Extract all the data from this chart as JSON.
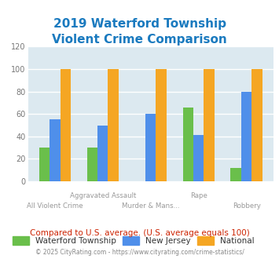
{
  "title": "2019 Waterford Township\nViolent Crime Comparison",
  "categories": [
    "All Violent Crime",
    "Aggravated Assault",
    "Murder & Mans...",
    "Rape",
    "Robbery"
  ],
  "series": {
    "Waterford Township": [
      30,
      30,
      0,
      66,
      12
    ],
    "New Jersey": [
      55,
      50,
      60,
      41,
      80
    ],
    "National": [
      100,
      100,
      100,
      100,
      100
    ]
  },
  "colors": {
    "Waterford Township": "#6abf4b",
    "New Jersey": "#4f8fea",
    "National": "#f5a623"
  },
  "ylim": [
    0,
    120
  ],
  "yticks": [
    0,
    20,
    40,
    60,
    80,
    100,
    120
  ],
  "title_color": "#1a7abf",
  "title_fontsize": 11,
  "plot_bg_color": "#dce9f0",
  "footer_text": "Compared to U.S. average. (U.S. average equals 100)",
  "footer_color": "#cc2200",
  "copyright_text": "© 2025 CityRating.com - https://www.cityrating.com/crime-statistics/",
  "copyright_color": "#888888",
  "grid_color": "#ffffff",
  "tick_label_color": "#777777",
  "legend_label_color": "#333333",
  "bar_width": 0.22,
  "upper_labels": {
    "1": "Aggravated Assault",
    "3": "Rape"
  },
  "lower_labels": {
    "0": "All Violent Crime",
    "2": "Murder & Mans...",
    "4": "Robbery"
  }
}
